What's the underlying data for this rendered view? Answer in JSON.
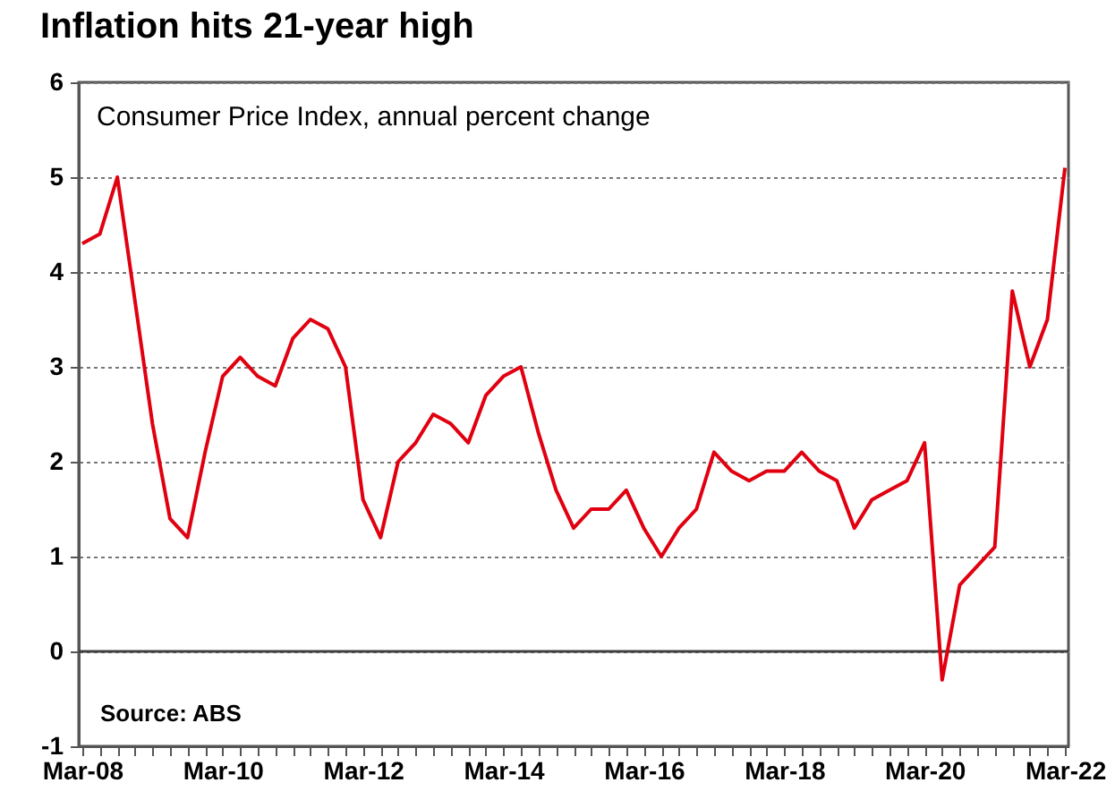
{
  "chart_data": {
    "type": "line",
    "title": "Inflation hits 21-year high",
    "subtitle": "Consumer Price Index, annual percent change",
    "annotations": [
      "Source: ABS"
    ],
    "categories": [
      "Mar-08",
      null,
      null,
      null,
      null,
      null,
      null,
      null,
      "Mar-10",
      null,
      null,
      null,
      null,
      null,
      null,
      null,
      "Mar-12",
      null,
      null,
      null,
      null,
      null,
      null,
      null,
      "Mar-14",
      null,
      null,
      null,
      null,
      null,
      null,
      null,
      "Mar-16",
      null,
      null,
      null,
      null,
      null,
      null,
      null,
      "Mar-18",
      null,
      null,
      null,
      null,
      null,
      null,
      null,
      "Mar-20",
      null,
      null,
      null,
      null,
      null,
      null,
      null,
      "Mar-22"
    ],
    "series": [
      {
        "color": "#e00010",
        "values": [
          4.3,
          4.4,
          5.0,
          3.7,
          2.4,
          1.4,
          1.2,
          2.1,
          2.9,
          3.1,
          2.9,
          2.8,
          3.3,
          3.5,
          3.4,
          3.0,
          1.6,
          1.2,
          2.0,
          2.2,
          2.5,
          2.4,
          2.2,
          2.7,
          2.9,
          3.0,
          2.3,
          1.7,
          1.3,
          1.5,
          1.5,
          1.7,
          1.3,
          1.0,
          1.3,
          1.5,
          2.1,
          1.9,
          1.8,
          1.9,
          1.9,
          2.1,
          1.9,
          1.8,
          1.3,
          1.6,
          1.7,
          1.8,
          2.2,
          -0.3,
          0.7,
          0.9,
          1.1,
          3.8,
          3.0,
          3.5,
          5.1
        ]
      }
    ],
    "ylim": [
      -1,
      6
    ],
    "yticks": [
      -1,
      0,
      1,
      2,
      3,
      4,
      5,
      6
    ],
    "grid": "y",
    "line_style": "solid",
    "marker": "none",
    "ref_lines": [
      {
        "axis": "y",
        "value": 0,
        "color": "#404040"
      }
    ]
  }
}
